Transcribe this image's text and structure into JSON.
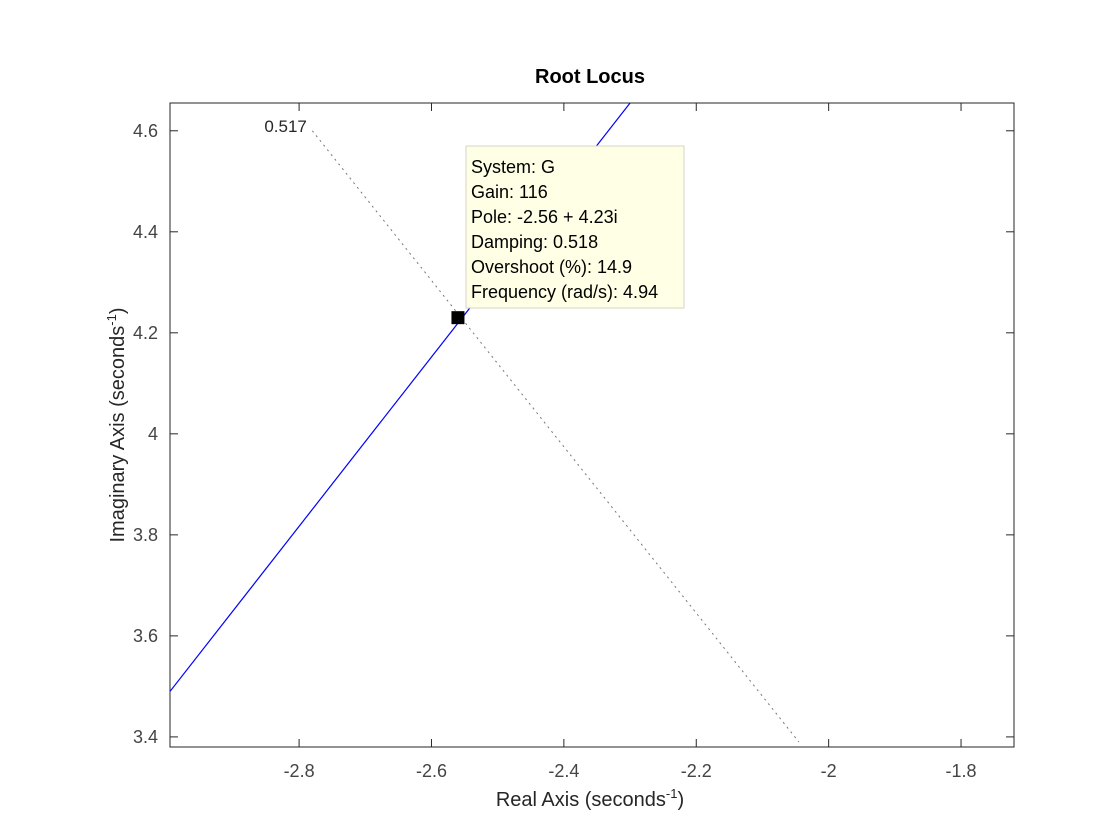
{
  "chart_data": {
    "type": "line",
    "title": "Root Locus",
    "xlabel": {
      "main": "Real Axis (seconds",
      "sup": "-1",
      "tail": ")"
    },
    "ylabel": {
      "main": "Imaginary Axis (seconds",
      "sup": "-1",
      "tail": ")"
    },
    "xlim": [
      -2.995,
      -1.72
    ],
    "ylim": [
      3.38,
      4.655
    ],
    "xticks": [
      {
        "v": -2.8,
        "label": "-2.8"
      },
      {
        "v": -2.6,
        "label": "-2.6"
      },
      {
        "v": -2.4,
        "label": "-2.4"
      },
      {
        "v": -2.2,
        "label": "-2.2"
      },
      {
        "v": -2.0,
        "label": "-2"
      },
      {
        "v": -1.8,
        "label": "-1.8"
      }
    ],
    "yticks": [
      {
        "v": 3.4,
        "label": "3.4"
      },
      {
        "v": 3.6,
        "label": "3.6"
      },
      {
        "v": 3.8,
        "label": "3.8"
      },
      {
        "v": 4.0,
        "label": "4"
      },
      {
        "v": 4.2,
        "label": "4.2"
      },
      {
        "v": 4.4,
        "label": "4.4"
      },
      {
        "v": 4.6,
        "label": "4.6"
      }
    ],
    "grid": false,
    "series": [
      {
        "name": "G",
        "color": "#0000ff",
        "x": [
          -2.995,
          -2.3
        ],
        "y": [
          3.49,
          4.655
        ]
      }
    ],
    "damping_line": {
      "label": "0.517",
      "color": "#777777",
      "x": [
        -2.78,
        -2.045
      ],
      "y": [
        4.6,
        3.39
      ]
    },
    "marker": {
      "x": -2.56,
      "y": 4.23,
      "color": "#000000"
    },
    "datatip": {
      "lines": [
        "System: G",
        "Gain: 116",
        "Pole: -2.56 + 4.23i",
        "Damping: 0.518",
        "Overshoot (%): 14.9",
        "Frequency (rad/s): 4.94"
      ],
      "background": "#ffffe6"
    }
  }
}
